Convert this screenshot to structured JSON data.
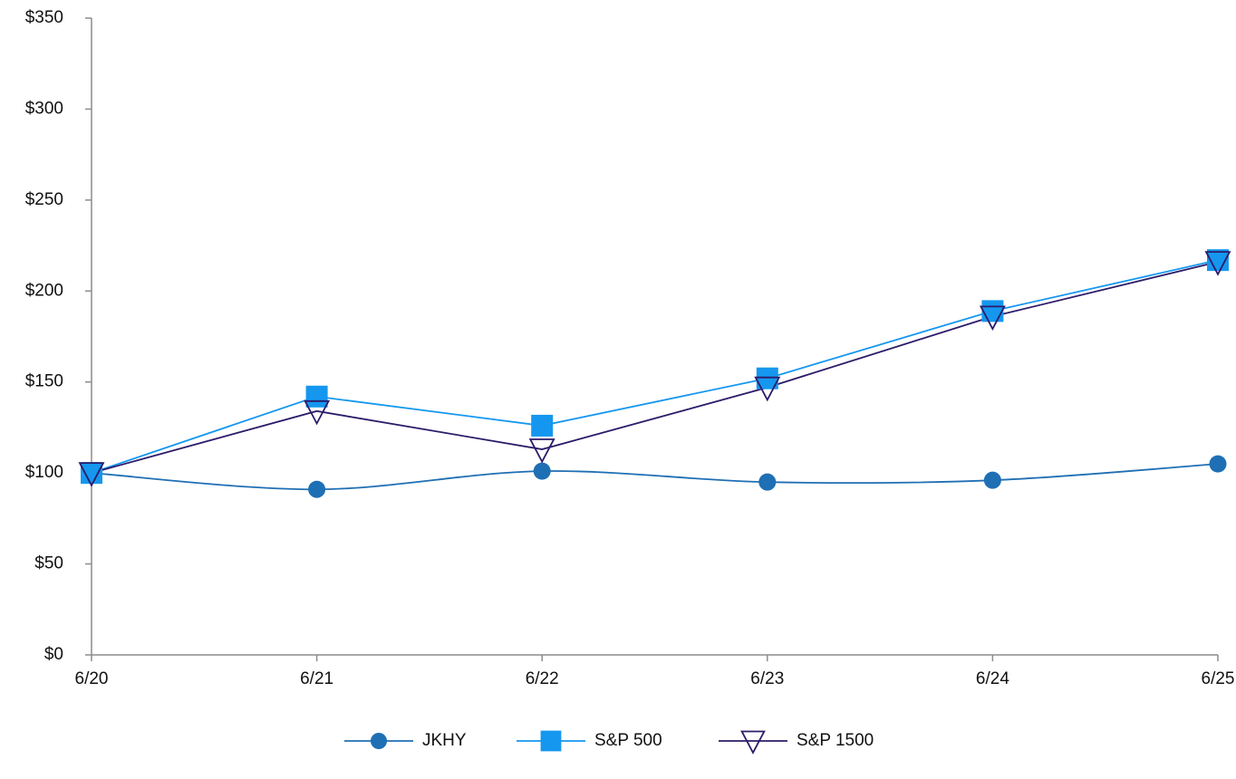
{
  "chart_data": {
    "type": "line",
    "categories": [
      "6/20",
      "6/21",
      "6/22",
      "6/23",
      "6/24",
      "6/25"
    ],
    "series": [
      {
        "name": "JKHY",
        "color": "#1f6fb4",
        "marker": "circle",
        "smooth": true,
        "values": [
          100,
          91,
          101,
          95,
          96,
          105
        ]
      },
      {
        "name": "S&P 500",
        "color": "#1597ef",
        "marker": "square",
        "smooth": false,
        "values": [
          100,
          142,
          126,
          152,
          189,
          217
        ]
      },
      {
        "name": "S&P 1500",
        "color": "#2d1b69",
        "marker": "triangle-down",
        "smooth": false,
        "values": [
          100,
          134,
          113,
          147,
          186,
          216
        ]
      }
    ],
    "ylim": [
      0,
      350
    ],
    "yticks": [
      {
        "value": 0,
        "label": "$0"
      },
      {
        "value": 50,
        "label": "$50"
      },
      {
        "value": 100,
        "label": "$100"
      },
      {
        "value": 150,
        "label": "$150"
      },
      {
        "value": 200,
        "label": "$200"
      },
      {
        "value": 250,
        "label": "$250"
      },
      {
        "value": 300,
        "label": "$300"
      },
      {
        "value": 350,
        "label": "$350"
      }
    ],
    "grid": false,
    "legend": "bottom"
  }
}
